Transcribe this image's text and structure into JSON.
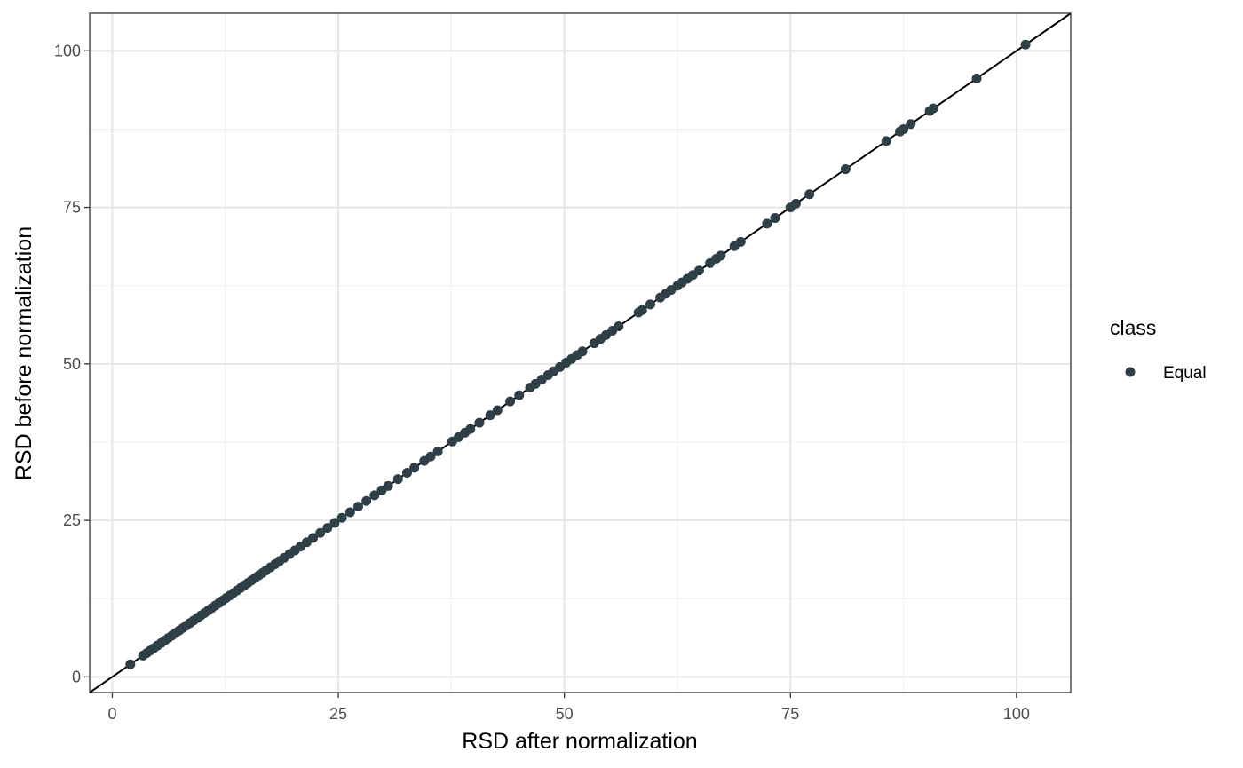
{
  "chart_data": {
    "type": "scatter",
    "title": "",
    "xlabel": "RSD after normalization",
    "ylabel": "RSD before normalization",
    "xlim": [
      -2.5,
      106
    ],
    "ylim": [
      -2.5,
      106
    ],
    "x_ticks": [
      0,
      25,
      50,
      75,
      100
    ],
    "y_ticks": [
      0,
      25,
      50,
      75,
      100
    ],
    "x_tick_labels": [
      "0",
      "25",
      "50",
      "75",
      "100"
    ],
    "y_tick_labels": [
      "0",
      "25",
      "50",
      "75",
      "100"
    ],
    "grid": true,
    "reference_line": {
      "slope": 1,
      "intercept": 0
    },
    "legend": {
      "title": "class",
      "position": "right",
      "entries": [
        {
          "label": "Equal",
          "color": "#2f3f48"
        }
      ]
    },
    "series": [
      {
        "name": "Equal",
        "color": "#2f3f48",
        "x": [
          2.0,
          3.4,
          3.8,
          4.2,
          4.6,
          5.0,
          5.4,
          5.8,
          6.2,
          6.6,
          7.0,
          7.4,
          7.8,
          8.2,
          8.6,
          9.0,
          9.4,
          9.8,
          10.2,
          10.6,
          11.0,
          11.4,
          11.8,
          12.2,
          12.6,
          13.0,
          13.4,
          13.8,
          14.2,
          14.6,
          15.0,
          15.4,
          15.8,
          16.2,
          16.6,
          17.0,
          17.5,
          18.0,
          18.5,
          19.0,
          19.6,
          20.2,
          20.8,
          21.5,
          22.2,
          23.0,
          23.8,
          24.6,
          25.4,
          26.3,
          27.2,
          28.1,
          29.0,
          29.8,
          30.5,
          31.6,
          32.6,
          33.4,
          34.5,
          35.2,
          36.0,
          37.6,
          38.3,
          39.0,
          39.6,
          40.6,
          41.8,
          42.6,
          44.0,
          45.0,
          46.2,
          46.8,
          47.5,
          48.2,
          48.8,
          49.5,
          50.2,
          50.8,
          51.4,
          52.0,
          53.3,
          54.0,
          54.6,
          55.3,
          56.0,
          58.2,
          58.6,
          59.5,
          60.6,
          61.2,
          61.8,
          62.5,
          63.0,
          63.6,
          64.2,
          64.9,
          66.1,
          66.8,
          67.3,
          68.8,
          69.5,
          72.4,
          73.3,
          75.0,
          75.6,
          77.1,
          81.1,
          85.6,
          87.1,
          87.5,
          88.3,
          90.4,
          90.8,
          95.6,
          101.0
        ],
        "y": [
          2.0,
          3.4,
          3.8,
          4.2,
          4.6,
          5.0,
          5.4,
          5.8,
          6.2,
          6.6,
          7.0,
          7.4,
          7.8,
          8.2,
          8.6,
          9.0,
          9.4,
          9.8,
          10.2,
          10.6,
          11.0,
          11.4,
          11.8,
          12.2,
          12.6,
          13.0,
          13.4,
          13.8,
          14.2,
          14.6,
          15.0,
          15.4,
          15.8,
          16.2,
          16.6,
          17.0,
          17.5,
          18.0,
          18.5,
          19.0,
          19.6,
          20.2,
          20.8,
          21.5,
          22.2,
          23.0,
          23.8,
          24.6,
          25.4,
          26.3,
          27.2,
          28.1,
          29.0,
          29.8,
          30.5,
          31.6,
          32.6,
          33.4,
          34.5,
          35.2,
          36.0,
          37.6,
          38.3,
          39.0,
          39.6,
          40.6,
          41.8,
          42.6,
          44.0,
          45.0,
          46.2,
          46.8,
          47.5,
          48.2,
          48.8,
          49.5,
          50.2,
          50.8,
          51.4,
          52.0,
          53.3,
          54.0,
          54.6,
          55.3,
          56.0,
          58.2,
          58.6,
          59.5,
          60.6,
          61.2,
          61.8,
          62.5,
          63.0,
          63.6,
          64.2,
          64.9,
          66.1,
          66.8,
          67.3,
          68.8,
          69.5,
          72.4,
          73.3,
          75.0,
          75.6,
          77.1,
          81.1,
          85.6,
          87.1,
          87.5,
          88.3,
          90.4,
          90.8,
          95.6,
          101.0
        ]
      }
    ]
  }
}
